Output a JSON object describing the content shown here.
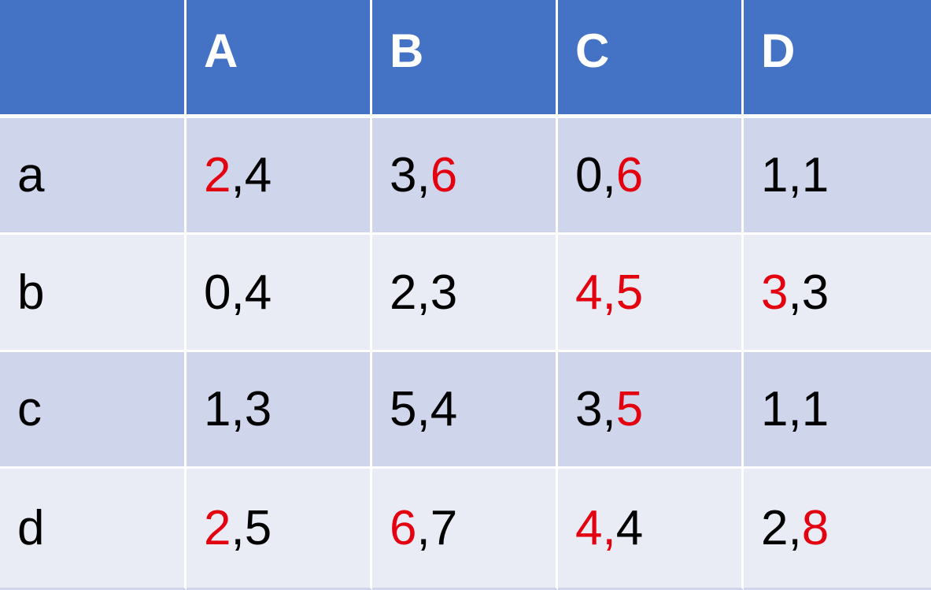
{
  "table": {
    "header": {
      "corner": "",
      "columns": [
        "A",
        "B",
        "C",
        "D"
      ]
    },
    "rows": [
      {
        "label": "a",
        "cells": [
          {
            "left": "2",
            "sep": ",",
            "right": "4",
            "left_color": "#e3000f",
            "sep_color": "#000000",
            "right_color": "#000000"
          },
          {
            "left": "3",
            "sep": ",",
            "right": "6",
            "left_color": "#000000",
            "sep_color": "#000000",
            "right_color": "#e3000f"
          },
          {
            "left": "0",
            "sep": ",",
            "right": "6",
            "left_color": "#000000",
            "sep_color": "#000000",
            "right_color": "#e3000f"
          },
          {
            "left": "1",
            "sep": ",",
            "right": "1",
            "left_color": "#000000",
            "sep_color": "#000000",
            "right_color": "#000000"
          }
        ]
      },
      {
        "label": "b",
        "cells": [
          {
            "left": "0",
            "sep": ",",
            "right": "4",
            "left_color": "#000000",
            "sep_color": "#000000",
            "right_color": "#000000"
          },
          {
            "left": "2",
            "sep": ",",
            "right": "3",
            "left_color": "#000000",
            "sep_color": "#000000",
            "right_color": "#000000"
          },
          {
            "left": "4",
            "sep": ",",
            "right": "5",
            "left_color": "#e3000f",
            "sep_color": "#e3000f",
            "right_color": "#e3000f"
          },
          {
            "left": "3",
            "sep": ",",
            "right": "3",
            "left_color": "#e3000f",
            "sep_color": "#000000",
            "right_color": "#000000"
          }
        ]
      },
      {
        "label": "c",
        "cells": [
          {
            "left": "1",
            "sep": ",",
            "right": "3",
            "left_color": "#000000",
            "sep_color": "#000000",
            "right_color": "#000000"
          },
          {
            "left": "5",
            "sep": ",",
            "right": "4",
            "left_color": "#000000",
            "sep_color": "#000000",
            "right_color": "#000000"
          },
          {
            "left": "3",
            "sep": ",",
            "right": "5",
            "left_color": "#000000",
            "sep_color": "#000000",
            "right_color": "#e3000f"
          },
          {
            "left": "1",
            "sep": ",",
            "right": "1",
            "left_color": "#000000",
            "sep_color": "#000000",
            "right_color": "#000000"
          }
        ]
      },
      {
        "label": "d",
        "cells": [
          {
            "left": "2",
            "sep": ",",
            "right": "5",
            "left_color": "#e3000f",
            "sep_color": "#000000",
            "right_color": "#000000"
          },
          {
            "left": "6",
            "sep": ",",
            "right": "7",
            "left_color": "#e3000f",
            "sep_color": "#000000",
            "right_color": "#000000"
          },
          {
            "left": "4",
            "sep": ",",
            "right": "4",
            "left_color": "#e3000f",
            "sep_color": "#e3000f",
            "right_color": "#000000"
          },
          {
            "left": "2",
            "sep": ",",
            "right": "8",
            "left_color": "#000000",
            "sep_color": "#000000",
            "right_color": "#e3000f"
          }
        ]
      }
    ]
  },
  "colors": {
    "header_bg": "#4472c4",
    "row_odd_bg": "#cfd5ea",
    "row_even_bg": "#e9ebf5",
    "highlight": "#e3000f"
  }
}
